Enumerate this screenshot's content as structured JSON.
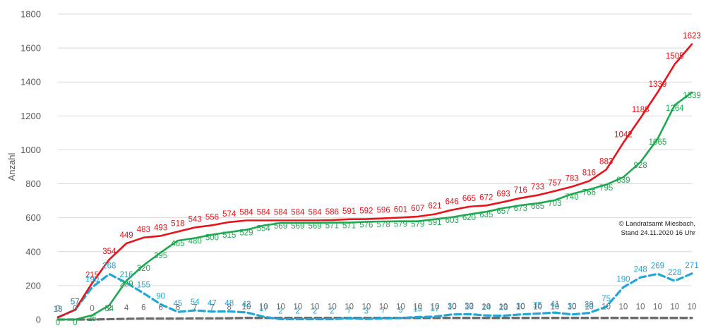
{
  "chart_data": {
    "type": "line",
    "ylabel": "Anzahl",
    "ylim": [
      0,
      1800
    ],
    "yticks": [
      0,
      200,
      400,
      600,
      800,
      1000,
      1200,
      1400,
      1600,
      1800
    ],
    "grid": "horizontal",
    "legend": "none",
    "annotation": [
      "© Landratsamt Miesbach,",
      "Stand 24.11.2020 16 Uhr"
    ],
    "series": [
      {
        "color": "#e8141b",
        "style": "solid",
        "values": [
          13,
          57,
          215,
          354,
          449,
          483,
          493,
          518,
          543,
          556,
          574,
          584,
          584,
          584,
          584,
          584,
          586,
          591,
          592,
          596,
          601,
          607,
          621,
          646,
          665,
          672,
          693,
          716,
          733,
          757,
          783,
          816,
          883,
          1042,
          1188,
          1339,
          1505,
          1623
        ]
      },
      {
        "color": "#1fa84f",
        "style": "solid",
        "values": [
          0,
          0,
          25,
          84,
          229,
          320,
          395,
          465,
          480,
          500,
          515,
          529,
          554,
          569,
          569,
          569,
          571,
          571,
          576,
          578,
          579,
          579,
          591,
          603,
          620,
          635,
          657,
          673,
          685,
          703,
          740,
          766,
          795,
          839,
          928,
          1065,
          1264,
          1339
        ]
      },
      {
        "color": "#22a6d8",
        "style": "dashed",
        "values": [
          13,
          57,
          190,
          268,
          216,
          155,
          90,
          45,
          54,
          47,
          48,
          42,
          17,
          2,
          2,
          2,
          2,
          7,
          3,
          7,
          9,
          15,
          17,
          30,
          32,
          24,
          23,
          30,
          35,
          41,
          30,
          39,
          75,
          190,
          248,
          269,
          228,
          271
        ]
      },
      {
        "color": "#6b6b6b",
        "style": "dashed",
        "values": [
          0,
          0,
          0,
          2,
          4,
          6,
          6,
          6,
          7,
          7,
          8,
          10,
          10,
          10,
          10,
          10,
          10,
          10,
          10,
          10,
          10,
          10,
          10,
          10,
          10,
          10,
          10,
          10,
          10,
          10,
          10,
          10,
          10,
          10,
          10,
          10,
          10,
          10
        ]
      }
    ]
  }
}
